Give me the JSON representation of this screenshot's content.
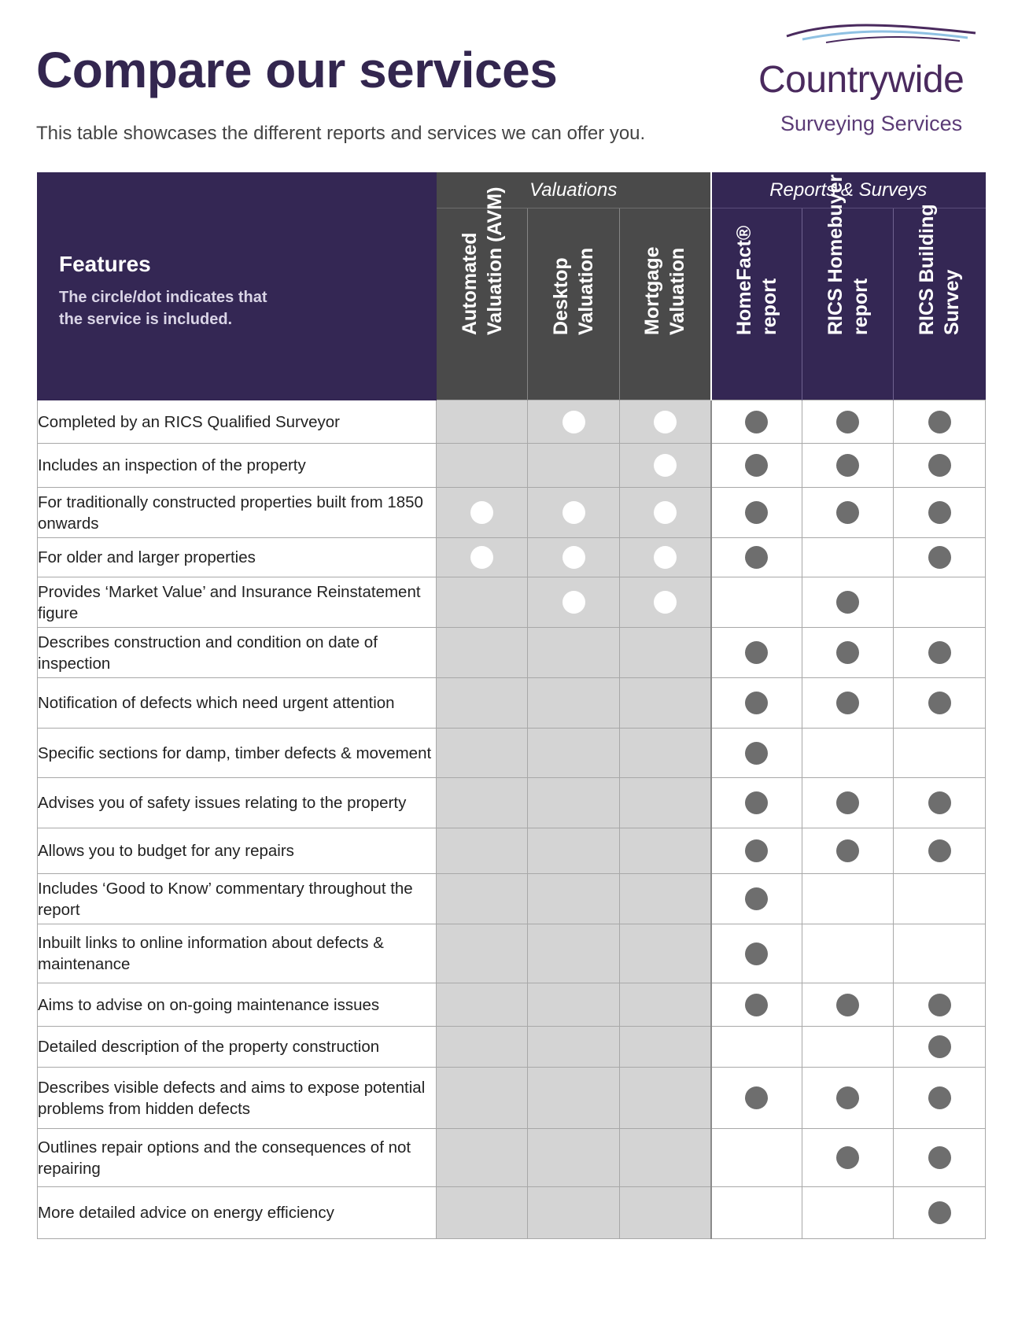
{
  "header": {
    "title": "Compare our services",
    "subtitle": "This table showcases the different reports and services we can offer you."
  },
  "logo": {
    "name": "Countrywide",
    "tagline": "Surveying Services",
    "colors": {
      "text": "#4a2a5e",
      "swoosh_dark": "#4a2a5e",
      "swoosh_light": "#8fc1e3"
    }
  },
  "table": {
    "features_heading": "Features",
    "features_note": "The circle/dot indicates that the service is included.",
    "groups": [
      {
        "label": "Valuations",
        "span": 3
      },
      {
        "label": "Reports & Surveys",
        "span": 3
      }
    ],
    "columns": [
      {
        "line1": "Automated",
        "line2": "Valuation (AVM)",
        "group": "val"
      },
      {
        "line1": "Desktop",
        "line2": "Valuation",
        "group": "val"
      },
      {
        "line1": "Mortgage",
        "line2": "Valuation",
        "group": "val"
      },
      {
        "line1": "HomeFact®",
        "line2": "report",
        "group": "rep"
      },
      {
        "line1": "RICS Homebuyer",
        "line2": "report",
        "group": "rep"
      },
      {
        "line1": "RICS Building",
        "line2": "Survey",
        "group": "rep"
      }
    ],
    "rows": [
      {
        "feature": "Completed by an RICS Qualified Surveyor",
        "included": [
          0,
          1,
          1,
          1,
          1,
          1
        ]
      },
      {
        "feature": "Includes an inspection of the property",
        "included": [
          0,
          0,
          1,
          1,
          1,
          1
        ]
      },
      {
        "feature": "For traditionally constructed properties built from 1850 onwards",
        "included": [
          1,
          1,
          1,
          1,
          1,
          1
        ]
      },
      {
        "feature": "For older and larger properties",
        "included": [
          1,
          1,
          1,
          1,
          0,
          1
        ]
      },
      {
        "feature": "Provides ‘Market Value’ and Insurance Reinstatement figure",
        "included": [
          0,
          1,
          1,
          0,
          1,
          0
        ]
      },
      {
        "feature": "Describes construction and condition on date of inspection",
        "included": [
          0,
          0,
          0,
          1,
          1,
          1
        ]
      },
      {
        "feature": "Notification of defects which need urgent attention",
        "included": [
          0,
          0,
          0,
          1,
          1,
          1
        ]
      },
      {
        "feature": "Specific sections for damp, timber defects & movement",
        "included": [
          0,
          0,
          0,
          1,
          0,
          0
        ]
      },
      {
        "feature": "Advises you of safety issues relating to the property",
        "included": [
          0,
          0,
          0,
          1,
          1,
          1
        ]
      },
      {
        "feature": "Allows you to budget for any repairs",
        "included": [
          0,
          0,
          0,
          1,
          1,
          1
        ]
      },
      {
        "feature": "Includes ‘Good to Know’ commentary throughout the report",
        "included": [
          0,
          0,
          0,
          1,
          0,
          0
        ]
      },
      {
        "feature": "Inbuilt links to online information about defects & maintenance",
        "included": [
          0,
          0,
          0,
          1,
          0,
          0
        ]
      },
      {
        "feature": "Aims to advise on on-going maintenance issues",
        "included": [
          0,
          0,
          0,
          1,
          1,
          1
        ]
      },
      {
        "feature": "Detailed description of the property construction",
        "included": [
          0,
          0,
          0,
          0,
          0,
          1
        ]
      },
      {
        "feature": "Describes visible defects and aims to expose potential problems from hidden defects",
        "included": [
          0,
          0,
          0,
          1,
          1,
          1
        ]
      },
      {
        "feature": "Outlines repair options and the consequences of not repairing",
        "included": [
          0,
          0,
          0,
          0,
          1,
          1
        ]
      },
      {
        "feature": "More detailed advice on energy efficiency",
        "included": [
          0,
          0,
          0,
          0,
          0,
          1
        ]
      }
    ],
    "colors": {
      "header_purple": "#342754",
      "header_grey": "#4a4a4a",
      "valuation_cell": "#d4d4d4",
      "dot_valuation": "#ffffff",
      "dot_report": "#6e6e6e"
    }
  }
}
